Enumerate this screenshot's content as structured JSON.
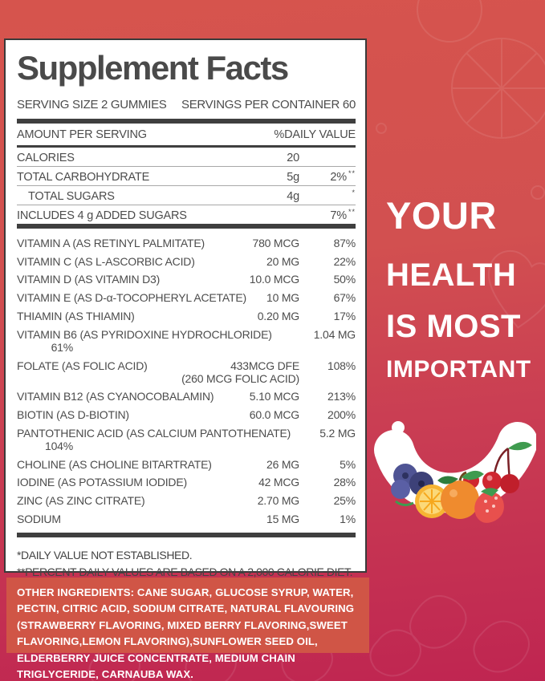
{
  "panel": {
    "title": "Supplement Facts",
    "serving_size": "SERVING SIZE 2 GUMMIES",
    "servings_per_container": "SERVINGS PER CONTAINER 60",
    "amount_header": "AMOUNT PER SERVING",
    "dv_header": "%DAILY VALUE",
    "top_rows": [
      {
        "name": "CALORIES",
        "amount": "20",
        "dv": "",
        "indent": false
      },
      {
        "name": "TOTAL CARBOHYDRATE",
        "amount": "5g",
        "dv": "2%",
        "dv_note": "**",
        "indent": false
      },
      {
        "name": "TOTAL SUGARS",
        "amount": "4g",
        "dv": "",
        "dv_note": "*",
        "indent": true
      },
      {
        "name": "INCLUDES 4 g ADDED SUGARS",
        "amount": "",
        "dv": "7%",
        "dv_note": "**",
        "indent": false
      }
    ],
    "nutrient_rows": [
      {
        "name": "VITAMIN A (AS RETINYL PALMITATE)",
        "amount": "780 MCG",
        "dv": "87%"
      },
      {
        "name": "VITAMIN C (AS L-ASCORBIC ACID)",
        "amount": "20 MG",
        "dv": "22%"
      },
      {
        "name": "VITAMIN D (AS VITAMIN D3)",
        "amount": "10.0 MCG",
        "dv": "50%"
      },
      {
        "name": "VITAMIN E (AS D-α-TOCOPHERYL ACETATE)",
        "amount": "10 MG",
        "dv": "67%"
      },
      {
        "name": "THIAMIN (AS THIAMIN)",
        "amount": "0.20 MG",
        "dv": "17%"
      },
      {
        "name": "VITAMIN B6 (AS PYRIDOXINE HYDROCHLORIDE)",
        "amount": "1.04 MG",
        "dv": "61%"
      },
      {
        "name": "FOLATE (AS FOLIC ACID)",
        "amount": "433MCG DFE",
        "amount2": "(260 MCG FOLIC ACID)",
        "dv": "108%"
      },
      {
        "name": "VITAMIN B12 (AS CYANOCOBALAMIN)",
        "amount": "5.10 MCG",
        "dv": "213%"
      },
      {
        "name": "BIOTIN (AS D-BIOTIN)",
        "amount": "60.0 MCG",
        "dv": "200%"
      },
      {
        "name": "PANTOTHENIC ACID (AS CALCIUM PANTOTHENATE)",
        "amount": "5.2 MG",
        "dv": "104%"
      },
      {
        "name": "CHOLINE (AS CHOLINE BITARTRATE)",
        "amount": "26 MG",
        "dv": "5%"
      },
      {
        "name": "IODINE (AS POTASSIUM IODIDE)",
        "amount": "42 MCG",
        "dv": "28%"
      },
      {
        "name": "ZINC (AS ZINC CITRATE)",
        "amount": "2.70 MG",
        "dv": "25%"
      },
      {
        "name": "SODIUM",
        "amount": "15 MG",
        "dv": "1%"
      }
    ],
    "footnotes": [
      "*DAILY VALUE NOT ESTABLISHED.",
      "**PERCENT DAILY VALUES ARE BASED ON A 2,000 CALORIE DIET."
    ]
  },
  "ingredients": {
    "text": "OTHER INGREDIENTS: CANE SUGAR, GLUCOSE SYRUP, WATER, PECTIN, CITRIC ACID, SODIUM CITRATE, NATURAL FLAVOURING (STRAWBERRY FLAVORING, MIXED BERRY FLAVORING,SWEET FLAVORING,LEMON FLAVORING),SUNFLOWER SEED OIL, ELDERBERRY JUICE CONCENTRATE, MEDIUM CHAIN TRIGLYCERIDE, CARNAUBA WAX."
  },
  "tagline": {
    "line1": "YOUR",
    "line2": "HEALTH",
    "line3": "IS MOST",
    "line4": "IMPORTANT"
  },
  "icons": {
    "fruit_smile": "fruits-smile-illustration"
  },
  "colors": {
    "bg_top": "#d6544d",
    "bg_bottom": "#bf2551",
    "ingredients_box": "#d05546",
    "panel_border": "#3a3a3a",
    "text_dark": "#474747",
    "tagline_white": "#ffffff",
    "blueberry": "#4f5494",
    "lemon": "#f6b433",
    "orange": "#ef8b2e",
    "strawberry": "#e8504d",
    "cherry": "#cf2630",
    "leaf_green": "#3f9b4f"
  }
}
